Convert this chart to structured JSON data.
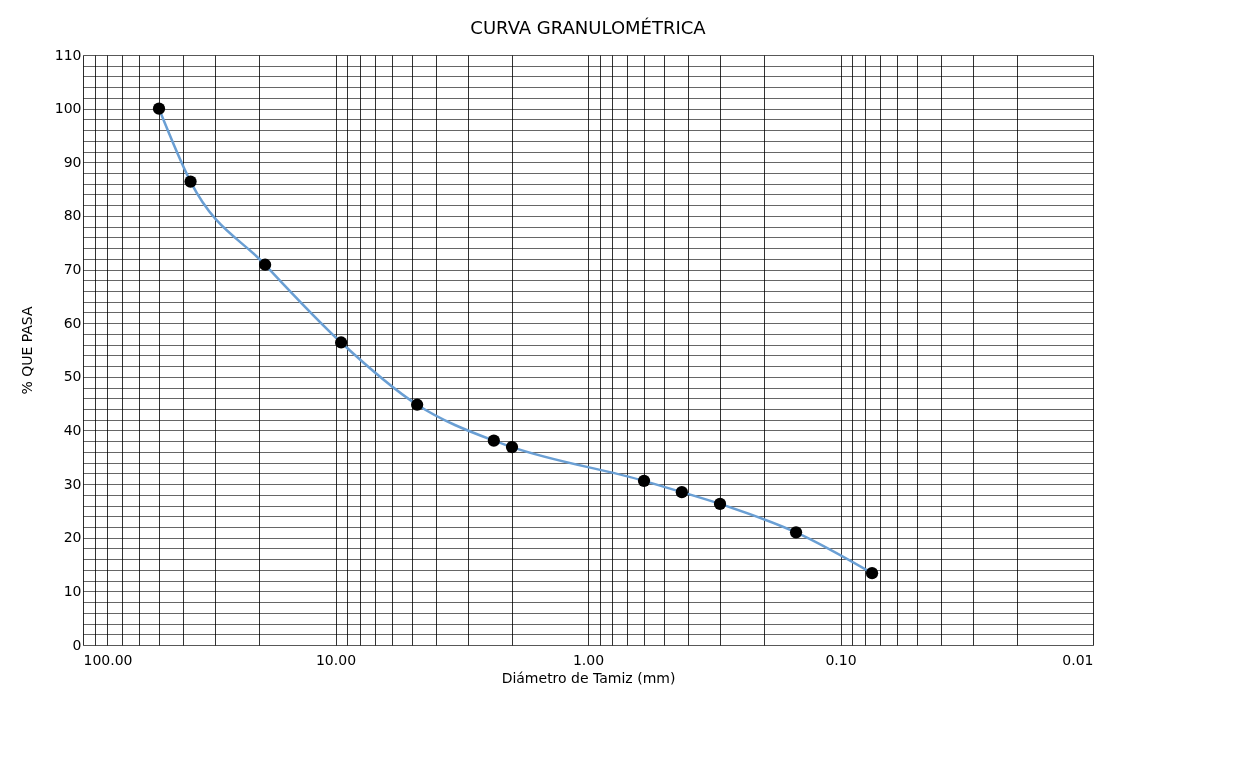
{
  "chart_data": {
    "type": "line",
    "title": "CURVA GRANULOMÉTRICA",
    "xlabel": "Diámetro de Tamiz (mm)",
    "ylabel": "% QUE PASA",
    "x": [
      50,
      37.5,
      19,
      9.5,
      4.75,
      2.36,
      2.0,
      0.6,
      0.425,
      0.3,
      0.15,
      0.075
    ],
    "series": [
      {
        "color": "#6a9fd4",
        "values": [
          100,
          86.4,
          70.9,
          56.4,
          44.8,
          38.1,
          36.9,
          30.6,
          28.5,
          26.3,
          21.0,
          13.4
        ]
      }
    ],
    "log": "x",
    "xlim": [
      100,
      0.01
    ],
    "ylim": [
      0,
      110
    ],
    "xticks": [
      {
        "value": 100,
        "label": "100.00"
      },
      {
        "value": 90,
        "label": null
      },
      {
        "value": 80,
        "label": null
      },
      {
        "value": 70,
        "label": null
      },
      {
        "value": 60,
        "label": null
      },
      {
        "value": 50,
        "label": null
      },
      {
        "value": 40,
        "label": null
      },
      {
        "value": 30,
        "label": null
      },
      {
        "value": 20,
        "label": null
      },
      {
        "value": 10,
        "label": "10.00"
      },
      {
        "value": 9,
        "label": null
      },
      {
        "value": 8,
        "label": null
      },
      {
        "value": 7,
        "label": null
      },
      {
        "value": 6,
        "label": null
      },
      {
        "value": 5,
        "label": null
      },
      {
        "value": 4,
        "label": null
      },
      {
        "value": 3,
        "label": null
      },
      {
        "value": 2,
        "label": null
      },
      {
        "value": 1,
        "label": "1.00"
      },
      {
        "value": 0.9,
        "label": null
      },
      {
        "value": 0.8,
        "label": null
      },
      {
        "value": 0.7,
        "label": null
      },
      {
        "value": 0.6,
        "label": null
      },
      {
        "value": 0.5,
        "label": null
      },
      {
        "value": 0.4,
        "label": null
      },
      {
        "value": 0.3,
        "label": null
      },
      {
        "value": 0.2,
        "label": null
      },
      {
        "value": 0.1,
        "label": "0.10"
      },
      {
        "value": 0.09,
        "label": null
      },
      {
        "value": 0.08,
        "label": null
      },
      {
        "value": 0.07,
        "label": null
      },
      {
        "value": 0.06,
        "label": null
      },
      {
        "value": 0.05,
        "label": null
      },
      {
        "value": 0.04,
        "label": null
      },
      {
        "value": 0.03,
        "label": null
      },
      {
        "value": 0.02,
        "label": null
      },
      {
        "value": 0.01,
        "label": "0.01"
      }
    ],
    "yticks": [
      0,
      {
        "value": 2,
        "label": null
      },
      {
        "value": 4,
        "label": null
      },
      {
        "value": 6,
        "label": null
      },
      {
        "value": 8,
        "label": null
      },
      10,
      {
        "value": 12,
        "label": null
      },
      {
        "value": 14,
        "label": null
      },
      {
        "value": 16,
        "label": null
      },
      {
        "value": 18,
        "label": null
      },
      20,
      {
        "value": 22,
        "label": null
      },
      {
        "value": 24,
        "label": null
      },
      {
        "value": 26,
        "label": null
      },
      {
        "value": 28,
        "label": null
      },
      30,
      {
        "value": 32,
        "label": null
      },
      {
        "value": 34,
        "label": null
      },
      {
        "value": 36,
        "label": null
      },
      {
        "value": 38,
        "label": null
      },
      40,
      {
        "value": 42,
        "label": null
      },
      {
        "value": 44,
        "label": null
      },
      {
        "value": 46,
        "label": null
      },
      {
        "value": 48,
        "label": null
      },
      50,
      {
        "value": 52,
        "label": null
      },
      {
        "value": 54,
        "label": null
      },
      {
        "value": 56,
        "label": null
      },
      {
        "value": 58,
        "label": null
      },
      60,
      {
        "value": 62,
        "label": null
      },
      {
        "value": 64,
        "label": null
      },
      {
        "value": 66,
        "label": null
      },
      {
        "value": 68,
        "label": null
      },
      70,
      {
        "value": 72,
        "label": null
      },
      {
        "value": 74,
        "label": null
      },
      {
        "value": 76,
        "label": null
      },
      {
        "value": 78,
        "label": null
      },
      80,
      {
        "value": 82,
        "label": null
      },
      {
        "value": 84,
        "label": null
      },
      {
        "value": 86,
        "label": null
      },
      {
        "value": 88,
        "label": null
      },
      90,
      {
        "value": 92,
        "label": null
      },
      {
        "value": 94,
        "label": null
      },
      {
        "value": 96,
        "label": null
      },
      {
        "value": 98,
        "label": null
      },
      100,
      {
        "value": 102,
        "label": null
      },
      {
        "value": 104,
        "label": null
      },
      {
        "value": 106,
        "label": null
      },
      {
        "value": 108,
        "label": null
      },
      110
    ],
    "grid": true,
    "marker": "circle",
    "line_style": "solid"
  }
}
